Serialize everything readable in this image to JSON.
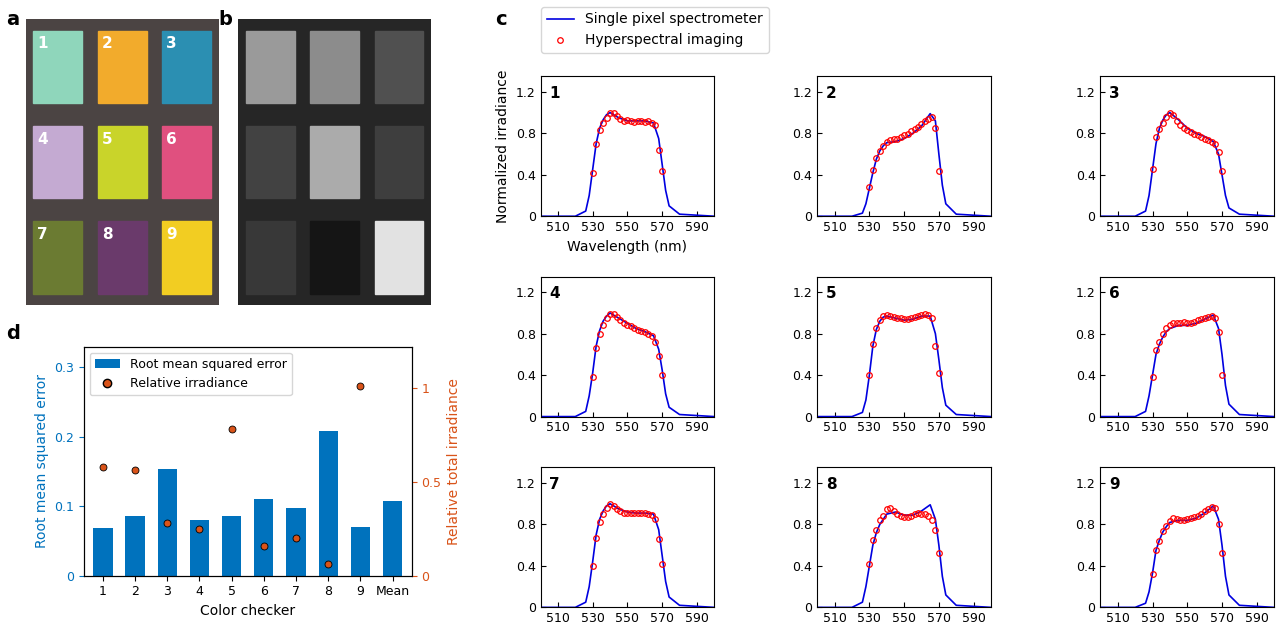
{
  "images": [
    {
      "panel_label": "a",
      "background": "#4b4443",
      "colors": [
        "#8fd6bb",
        "#f2ab2c",
        "#2b8fb2",
        "#c4aad2",
        "#c9d42a",
        "#e0507f",
        "#6b7b32",
        "#6a3a6b",
        "#f2cd22"
      ],
      "cell_labels": [
        "1",
        "2",
        "3",
        "4",
        "5",
        "6",
        "7",
        "8",
        "9"
      ]
    },
    {
      "panel_label": "b",
      "background": "#262626",
      "colors": [
        "#9a9a9a",
        "#8c8c8c",
        "#505050",
        "#424242",
        "#ababab",
        "#3e3e3e",
        "#383838",
        "#151515",
        "#e2e2e2"
      ]
    }
  ],
  "chart_data": [
    {
      "type": "line",
      "panel_label": "c",
      "legend": "upper left",
      "xlabel": "Wavelength (nm)",
      "ylabel": "Normalized irradiance",
      "xlim": [
        500,
        600
      ],
      "ylim": [
        0,
        1.35
      ],
      "xticks": [
        510,
        530,
        550,
        570,
        590
      ],
      "yticks": [
        0,
        0.4,
        0.8,
        1.2
      ],
      "titles": [
        "1",
        "2",
        "3",
        "4",
        "5",
        "6",
        "7",
        "8",
        "9"
      ],
      "series": [
        {
          "name": "Single pixel spectrometer",
          "color": "#0000e0",
          "line_style": "solid",
          "marker": "none",
          "x": [
            500,
            520,
            526,
            528,
            530,
            532,
            534,
            536,
            538,
            540,
            545,
            550,
            555,
            560,
            565,
            568,
            570,
            572,
            574,
            580,
            600
          ],
          "values": [
            [
              0,
              0,
              0.05,
              0.2,
              0.45,
              0.7,
              0.85,
              0.93,
              0.98,
              1.0,
              0.95,
              0.92,
              0.92,
              0.92,
              0.9,
              0.75,
              0.5,
              0.25,
              0.1,
              0.02,
              0
            ],
            [
              0,
              0,
              0.03,
              0.12,
              0.27,
              0.42,
              0.55,
              0.63,
              0.68,
              0.71,
              0.72,
              0.75,
              0.8,
              0.87,
              0.99,
              0.92,
              0.6,
              0.3,
              0.12,
              0.02,
              0
            ],
            [
              0,
              0,
              0.05,
              0.2,
              0.45,
              0.7,
              0.85,
              0.93,
              0.98,
              1.0,
              0.93,
              0.85,
              0.8,
              0.77,
              0.72,
              0.6,
              0.4,
              0.2,
              0.08,
              0.02,
              0
            ],
            [
              0,
              0,
              0.05,
              0.2,
              0.42,
              0.68,
              0.83,
              0.92,
              0.97,
              1.0,
              0.95,
              0.9,
              0.85,
              0.82,
              0.78,
              0.65,
              0.45,
              0.22,
              0.09,
              0.02,
              0
            ],
            [
              0,
              0,
              0.04,
              0.16,
              0.4,
              0.68,
              0.84,
              0.92,
              0.96,
              0.97,
              0.95,
              0.93,
              0.94,
              0.97,
              0.97,
              0.8,
              0.55,
              0.28,
              0.11,
              0.02,
              0
            ],
            [
              0,
              0,
              0.05,
              0.2,
              0.4,
              0.6,
              0.7,
              0.77,
              0.82,
              0.85,
              0.88,
              0.88,
              0.9,
              0.94,
              0.98,
              0.85,
              0.6,
              0.3,
              0.12,
              0.02,
              0
            ],
            [
              0,
              0,
              0.05,
              0.2,
              0.44,
              0.7,
              0.85,
              0.93,
              0.98,
              1.0,
              0.95,
              0.92,
              0.91,
              0.91,
              0.9,
              0.75,
              0.5,
              0.25,
              0.1,
              0.02,
              0
            ],
            [
              0,
              0,
              0.05,
              0.2,
              0.4,
              0.6,
              0.72,
              0.8,
              0.85,
              0.9,
              0.92,
              0.89,
              0.89,
              0.93,
              0.99,
              0.85,
              0.6,
              0.3,
              0.12,
              0.02,
              0
            ],
            [
              0,
              0,
              0.04,
              0.15,
              0.33,
              0.55,
              0.65,
              0.73,
              0.78,
              0.82,
              0.84,
              0.84,
              0.86,
              0.91,
              0.98,
              0.85,
              0.6,
              0.3,
              0.12,
              0.02,
              0
            ]
          ]
        },
        {
          "name": "Hyperspectral imaging",
          "color": "#ff0000",
          "line_style": "none",
          "marker": "o",
          "x": [
            530,
            532,
            534,
            536,
            538,
            540,
            542,
            544,
            546,
            548,
            550,
            552,
            554,
            556,
            558,
            560,
            562,
            564,
            566,
            568,
            570
          ],
          "values": [
            [
              0.42,
              0.7,
              0.83,
              0.9,
              0.95,
              1.0,
              1.0,
              0.97,
              0.94,
              0.92,
              0.93,
              0.92,
              0.91,
              0.92,
              0.92,
              0.91,
              0.92,
              0.9,
              0.88,
              0.64,
              0.44
            ],
            [
              0.28,
              0.45,
              0.56,
              0.63,
              0.68,
              0.72,
              0.74,
              0.75,
              0.75,
              0.76,
              0.78,
              0.79,
              0.82,
              0.84,
              0.86,
              0.89,
              0.92,
              0.94,
              0.96,
              0.85,
              0.44
            ],
            [
              0.46,
              0.76,
              0.84,
              0.9,
              0.96,
              1.0,
              0.98,
              0.92,
              0.88,
              0.85,
              0.83,
              0.81,
              0.79,
              0.78,
              0.76,
              0.75,
              0.74,
              0.72,
              0.7,
              0.62,
              0.44
            ],
            [
              0.38,
              0.66,
              0.8,
              0.88,
              0.95,
              0.99,
              0.99,
              0.96,
              0.93,
              0.9,
              0.88,
              0.87,
              0.85,
              0.84,
              0.83,
              0.82,
              0.8,
              0.78,
              0.72,
              0.58,
              0.4
            ],
            [
              0.4,
              0.7,
              0.85,
              0.93,
              0.97,
              0.98,
              0.97,
              0.96,
              0.95,
              0.95,
              0.94,
              0.94,
              0.95,
              0.96,
              0.97,
              0.98,
              0.99,
              0.98,
              0.95,
              0.68,
              0.42
            ],
            [
              0.38,
              0.64,
              0.72,
              0.8,
              0.85,
              0.88,
              0.9,
              0.9,
              0.9,
              0.91,
              0.9,
              0.9,
              0.91,
              0.93,
              0.94,
              0.95,
              0.96,
              0.97,
              0.95,
              0.82,
              0.4
            ],
            [
              0.4,
              0.67,
              0.82,
              0.9,
              0.96,
              1.0,
              0.98,
              0.95,
              0.93,
              0.91,
              0.91,
              0.91,
              0.91,
              0.91,
              0.91,
              0.91,
              0.9,
              0.89,
              0.85,
              0.66,
              0.42
            ],
            [
              0.42,
              0.65,
              0.75,
              0.84,
              0.88,
              0.95,
              0.96,
              0.93,
              0.9,
              0.88,
              0.87,
              0.87,
              0.88,
              0.9,
              0.91,
              0.9,
              0.9,
              0.88,
              0.84,
              0.75,
              0.52
            ],
            [
              0.32,
              0.55,
              0.64,
              0.74,
              0.79,
              0.83,
              0.86,
              0.85,
              0.84,
              0.84,
              0.85,
              0.86,
              0.87,
              0.88,
              0.9,
              0.93,
              0.95,
              0.97,
              0.96,
              0.8,
              0.52
            ]
          ]
        }
      ]
    },
    {
      "type": "bar",
      "panel_label": "d",
      "legend": "upper left",
      "xlabel": "Color checker",
      "ylabel": "Root mean squared error",
      "y2label": "Relative total irradiance",
      "categories": [
        "1",
        "2",
        "3",
        "4",
        "5",
        "6",
        "7",
        "8",
        "9",
        "Mean"
      ],
      "ylim": [
        0,
        0.33
      ],
      "yticks": [
        0,
        0.1,
        0.2,
        0.3
      ],
      "y2lim": [
        0,
        1.22
      ],
      "y2ticks": [
        0,
        0.5,
        1
      ],
      "series": [
        {
          "name": "Root mean squared error",
          "type": "bar",
          "color": "#0072bd",
          "values": [
            0.068,
            0.086,
            0.153,
            0.08,
            0.086,
            0.11,
            0.097,
            0.209,
            0.07,
            0.107
          ]
        },
        {
          "name": "Relative irradiance",
          "type": "scatter",
          "marker": "o",
          "color": "#d95319",
          "axis": "y2",
          "values": [
            0.58,
            0.56,
            0.28,
            0.25,
            0.78,
            0.16,
            0.2,
            0.06,
            1.01,
            null
          ]
        }
      ]
    }
  ]
}
